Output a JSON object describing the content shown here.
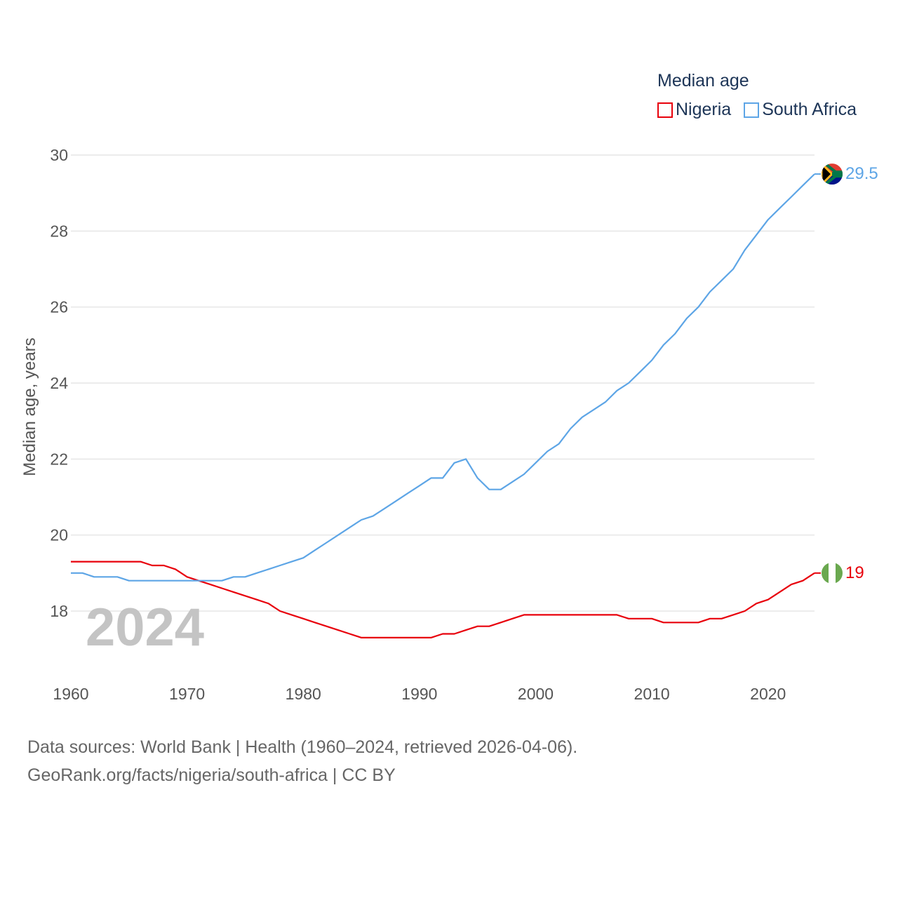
{
  "legend": {
    "title": "Median age",
    "items": [
      {
        "name": "Nigeria",
        "color": "#e8000b"
      },
      {
        "name": "South Africa",
        "color": "#5da5e6"
      }
    ]
  },
  "source": {
    "line1": "Data sources: World Bank | Health (1960–2024, retrieved 2026-04-06).",
    "line2": "GeoRank.org/facts/nigeria/south-africa | CC BY"
  },
  "chart_data": {
    "type": "line",
    "title": "Median age",
    "xlabel": "",
    "ylabel": "Median age, years",
    "year_label": "2024",
    "xlim": [
      1960,
      2024
    ],
    "ylim": [
      16.8,
      30
    ],
    "yticks": [
      18,
      20,
      22,
      24,
      26,
      28,
      30
    ],
    "xticks": [
      1960,
      1970,
      1980,
      1990,
      2000,
      2010,
      2020
    ],
    "grid": true,
    "legend_position": "top-right",
    "x": [
      1960,
      1961,
      1962,
      1963,
      1964,
      1965,
      1966,
      1967,
      1968,
      1969,
      1970,
      1971,
      1972,
      1973,
      1974,
      1975,
      1976,
      1977,
      1978,
      1979,
      1980,
      1981,
      1982,
      1983,
      1984,
      1985,
      1986,
      1987,
      1988,
      1989,
      1990,
      1991,
      1992,
      1993,
      1994,
      1995,
      1996,
      1997,
      1998,
      1999,
      2000,
      2001,
      2002,
      2003,
      2004,
      2005,
      2006,
      2007,
      2008,
      2009,
      2010,
      2011,
      2012,
      2013,
      2014,
      2015,
      2016,
      2017,
      2018,
      2019,
      2020,
      2021,
      2022,
      2023,
      2024
    ],
    "series": [
      {
        "name": "Nigeria",
        "color": "#e8000b",
        "end_label": "19",
        "values": [
          19.3,
          19.3,
          19.3,
          19.3,
          19.3,
          19.3,
          19.3,
          19.2,
          19.2,
          19.1,
          18.9,
          18.8,
          18.7,
          18.6,
          18.5,
          18.4,
          18.3,
          18.2,
          18.0,
          17.9,
          17.8,
          17.7,
          17.6,
          17.5,
          17.4,
          17.3,
          17.3,
          17.3,
          17.3,
          17.3,
          17.3,
          17.3,
          17.4,
          17.4,
          17.5,
          17.6,
          17.6,
          17.7,
          17.8,
          17.9,
          17.9,
          17.9,
          17.9,
          17.9,
          17.9,
          17.9,
          17.9,
          17.9,
          17.8,
          17.8,
          17.8,
          17.7,
          17.7,
          17.7,
          17.7,
          17.8,
          17.8,
          17.9,
          18.0,
          18.2,
          18.3,
          18.5,
          18.7,
          18.8,
          19.0
        ]
      },
      {
        "name": "South Africa",
        "color": "#5da5e6",
        "end_label": "29.5",
        "values": [
          19.0,
          19.0,
          18.9,
          18.9,
          18.9,
          18.8,
          18.8,
          18.8,
          18.8,
          18.8,
          18.8,
          18.8,
          18.8,
          18.8,
          18.9,
          18.9,
          19.0,
          19.1,
          19.2,
          19.3,
          19.4,
          19.6,
          19.8,
          20.0,
          20.2,
          20.4,
          20.5,
          20.7,
          20.9,
          21.1,
          21.3,
          21.5,
          21.5,
          21.9,
          22.0,
          21.5,
          21.2,
          21.2,
          21.4,
          21.6,
          21.9,
          22.2,
          22.4,
          22.8,
          23.1,
          23.3,
          23.5,
          23.8,
          24.0,
          24.3,
          24.6,
          25.0,
          25.3,
          25.7,
          26.0,
          26.4,
          26.7,
          27.0,
          27.5,
          27.9,
          28.3,
          28.6,
          28.9,
          29.2,
          29.5
        ]
      }
    ]
  }
}
